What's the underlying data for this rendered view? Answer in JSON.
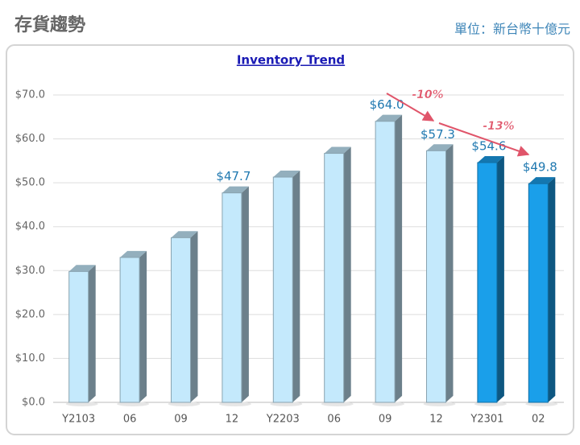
{
  "header": {
    "title": "存貨趨勢",
    "unit": "單位：新台幣十億元"
  },
  "chart_data": {
    "type": "bar",
    "title": "Inventory Trend",
    "categories": [
      "Y2103",
      "06",
      "09",
      "12",
      "Y2203",
      "06",
      "09",
      "12",
      "Y2301",
      "02"
    ],
    "values": [
      29.8,
      33,
      37.5,
      47.7,
      51.3,
      56.7,
      64.0,
      57.3,
      54.6,
      49.8
    ],
    "value_labels": [
      null,
      null,
      null,
      "$47.7",
      null,
      null,
      "$64.0",
      "$57.3",
      "$54.6",
      "$49.8"
    ],
    "colors": [
      "#c4e9fc",
      "#c4e9fc",
      "#c4e9fc",
      "#c4e9fc",
      "#c4e9fc",
      "#c4e9fc",
      "#c4e9fc",
      "#c4e9fc",
      "#1a9fea",
      "#1a9fea"
    ],
    "ylim": [
      0,
      70
    ],
    "yticks": [
      {
        "value": 0,
        "label": "$0.0"
      },
      {
        "value": 10,
        "label": "$10.0"
      },
      {
        "value": 20,
        "label": "$20.0"
      },
      {
        "value": 30,
        "label": "$30.0"
      },
      {
        "value": 40,
        "label": "$40.0"
      },
      {
        "value": 50,
        "label": "$50.0"
      },
      {
        "value": 60,
        "label": "$60.0"
      },
      {
        "value": 70,
        "label": "$70.0"
      }
    ],
    "grid": true,
    "annotations": [
      "-10%",
      "-13%"
    ]
  }
}
